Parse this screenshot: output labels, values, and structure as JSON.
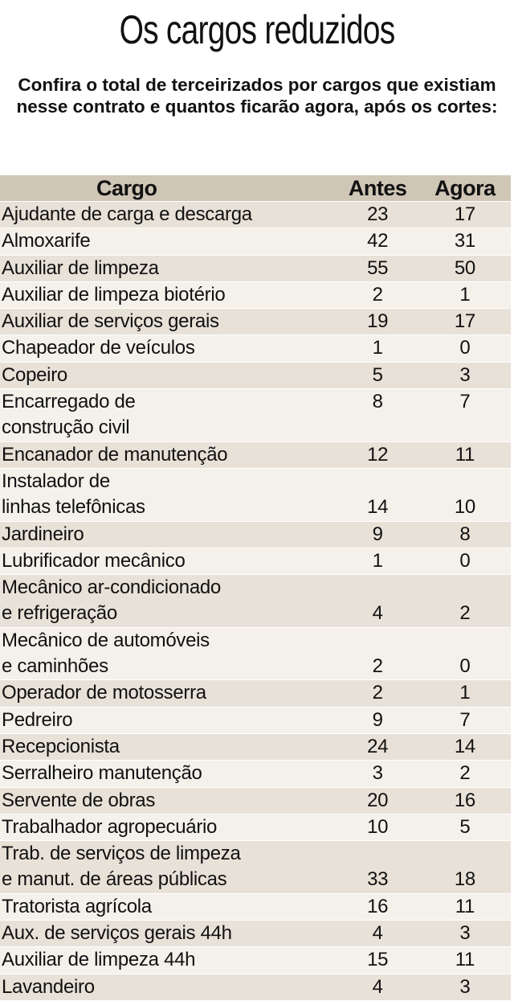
{
  "title": "Os cargos reduzidos",
  "subtitle": "Confira o total de terceirizados por cargos que existiam nesse contrato e quantos ficarão agora, após os cortes:",
  "chart_data": {
    "type": "table",
    "columns": [
      "Cargo",
      "Antes",
      "Agora"
    ],
    "rows": [
      {
        "cargo": [
          "Ajudante de carga e descarga"
        ],
        "antes": "23",
        "agora": "17"
      },
      {
        "cargo": [
          "Almoxarife"
        ],
        "antes": "42",
        "agora": "31"
      },
      {
        "cargo": [
          "Auxiliar de limpeza"
        ],
        "antes": "55",
        "agora": "50"
      },
      {
        "cargo": [
          "Auxiliar de limpeza biotério"
        ],
        "antes": "2",
        "agora": "1"
      },
      {
        "cargo": [
          "Auxiliar de serviços gerais"
        ],
        "antes": "19",
        "agora": "17"
      },
      {
        "cargo": [
          "Chapeador de veículos"
        ],
        "antes": "1",
        "agora": "0"
      },
      {
        "cargo": [
          "Copeiro"
        ],
        "antes": "5",
        "agora": "3"
      },
      {
        "cargo": [
          "Encarregado de",
          "construção civil"
        ],
        "antes": "8",
        "agora": "7",
        "valign": "top"
      },
      {
        "cargo": [
          "Encanador de manutenção"
        ],
        "antes": "12",
        "agora": "11"
      },
      {
        "cargo": [
          "Instalador de",
          "linhas telefônicas"
        ],
        "antes": "14",
        "agora": "10",
        "valign": "bottom"
      },
      {
        "cargo": [
          "Jardineiro"
        ],
        "antes": "9",
        "agora": "8"
      },
      {
        "cargo": [
          "Lubrificador mecânico"
        ],
        "antes": "1",
        "agora": "0"
      },
      {
        "cargo": [
          "Mecânico ar-condicionado",
          "e refrigeração"
        ],
        "antes": "4",
        "agora": "2",
        "valign": "bottom"
      },
      {
        "cargo": [
          "Mecânico de automóveis",
          "e caminhões"
        ],
        "antes": "2",
        "agora": "0",
        "valign": "bottom"
      },
      {
        "cargo": [
          "Operador de motosserra"
        ],
        "antes": "2",
        "agora": "1"
      },
      {
        "cargo": [
          "Pedreiro"
        ],
        "antes": "9",
        "agora": "7"
      },
      {
        "cargo": [
          "Recepcionista"
        ],
        "antes": "24",
        "agora": "14"
      },
      {
        "cargo": [
          "Serralheiro manutenção"
        ],
        "antes": "3",
        "agora": "2"
      },
      {
        "cargo": [
          "Servente de obras"
        ],
        "antes": "20",
        "agora": "16"
      },
      {
        "cargo": [
          "Trabalhador agropecuário"
        ],
        "antes": "10",
        "agora": "5"
      },
      {
        "cargo": [
          "Trab. de serviços de limpeza",
          "e manut. de áreas públicas"
        ],
        "antes": "33",
        "agora": "18",
        "valign": "bottom"
      },
      {
        "cargo": [
          "Tratorista agrícola"
        ],
        "antes": "16",
        "agora": "11"
      },
      {
        "cargo": [
          "Aux. de serviços gerais 44h"
        ],
        "antes": "4",
        "agora": "3"
      },
      {
        "cargo": [
          "Auxiliar de limpeza 44h"
        ],
        "antes": "15",
        "agora": "11"
      },
      {
        "cargo": [
          "Lavandeiro"
        ],
        "antes": "4",
        "agora": "3"
      }
    ]
  }
}
